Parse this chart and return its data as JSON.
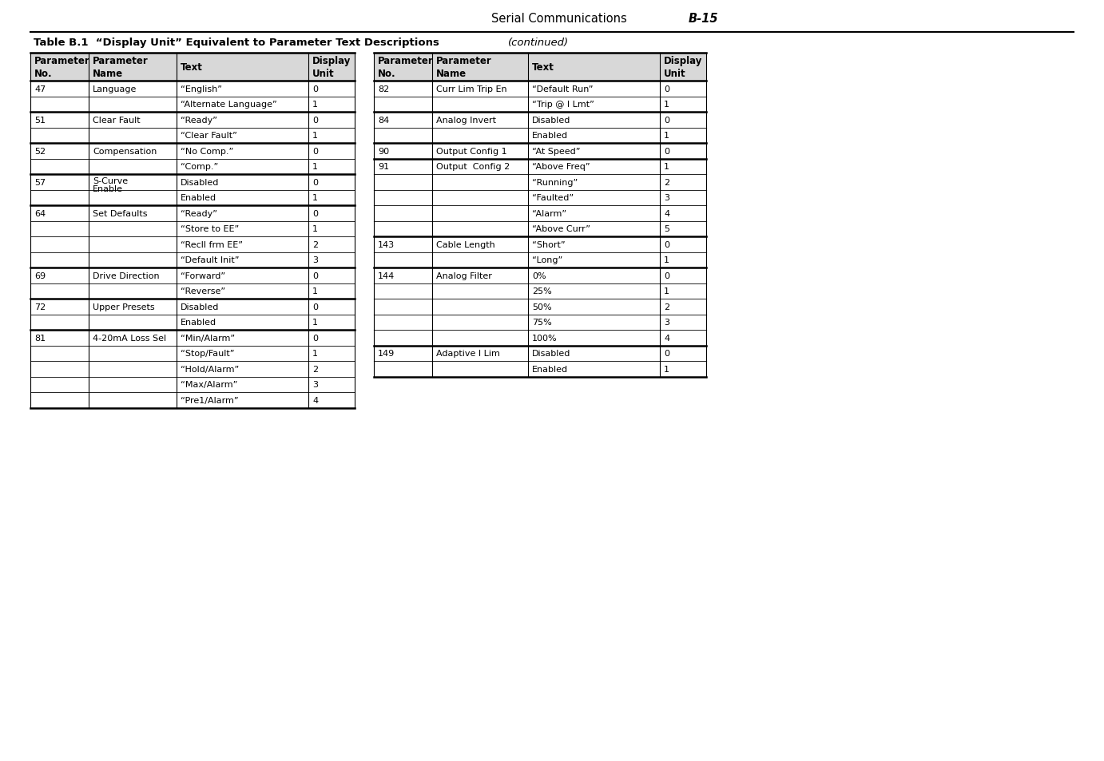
{
  "page_header_left": "Serial Communications",
  "page_header_right": "B-15",
  "table_title_bold": "Table B.1  “Display Unit” Equivalent to Parameter Text Descriptions",
  "table_title_italic": "(continued)",
  "left_table": {
    "headers": [
      "Parameter\nNo.",
      "Parameter\nName",
      "Text",
      "Display\nUnit"
    ],
    "rows": [
      [
        "47",
        "Language",
        "“English”",
        "0"
      ],
      [
        "",
        "",
        "“Alternate Language”",
        "1"
      ],
      [
        "51",
        "Clear Fault",
        "“Ready”",
        "0"
      ],
      [
        "",
        "",
        "“Clear Fault”",
        "1"
      ],
      [
        "52",
        "Compensation",
        "“No Comp.”",
        "0"
      ],
      [
        "",
        "",
        "“Comp.”",
        "1"
      ],
      [
        "57",
        "S-Curve\nEnable",
        "Disabled",
        "0"
      ],
      [
        "",
        "",
        "Enabled",
        "1"
      ],
      [
        "64",
        "Set Defaults",
        "“Ready”",
        "0"
      ],
      [
        "",
        "",
        "“Store to EE”",
        "1"
      ],
      [
        "",
        "",
        "“Recll frm EE”",
        "2"
      ],
      [
        "",
        "",
        "“Default Init”",
        "3"
      ],
      [
        "69",
        "Drive Direction",
        "“Forward”",
        "0"
      ],
      [
        "",
        "",
        "“Reverse”",
        "1"
      ],
      [
        "72",
        "Upper Presets",
        "Disabled",
        "0"
      ],
      [
        "",
        "",
        "Enabled",
        "1"
      ],
      [
        "81",
        "4-20mA Loss Sel",
        "“Min/Alarm”",
        "0"
      ],
      [
        "",
        "",
        "“Stop/Fault”",
        "1"
      ],
      [
        "",
        "",
        "“Hold/Alarm”",
        "2"
      ],
      [
        "",
        "",
        "“Max/Alarm”",
        "3"
      ],
      [
        "",
        "",
        "“Pre1/Alarm”",
        "4"
      ]
    ]
  },
  "right_table": {
    "headers": [
      "Parameter\nNo.",
      "Parameter\nName",
      "Text",
      "Display\nUnit"
    ],
    "rows": [
      [
        "82",
        "Curr Lim Trip En",
        "“Default Run”",
        "0"
      ],
      [
        "",
        "",
        "“Trip @ I Lmt”",
        "1"
      ],
      [
        "84",
        "Analog Invert",
        "Disabled",
        "0"
      ],
      [
        "",
        "",
        "Enabled",
        "1"
      ],
      [
        "90",
        "Output Config 1",
        "“At Speed”",
        "0"
      ],
      [
        "91",
        "Output  Config 2",
        "“Above Freq”",
        "1"
      ],
      [
        "",
        "",
        "“Running”",
        "2"
      ],
      [
        "",
        "",
        "“Faulted”",
        "3"
      ],
      [
        "",
        "",
        "“Alarm”",
        "4"
      ],
      [
        "",
        "",
        "“Above Curr”",
        "5"
      ],
      [
        "143",
        "Cable Length",
        "“Short”",
        "0"
      ],
      [
        "",
        "",
        "“Long”",
        "1"
      ],
      [
        "144",
        "Analog Filter",
        "0%",
        "0"
      ],
      [
        "",
        "",
        "25%",
        "1"
      ],
      [
        "",
        "",
        "50%",
        "2"
      ],
      [
        "",
        "",
        "75%",
        "3"
      ],
      [
        "",
        "",
        "100%",
        "4"
      ],
      [
        "149",
        "Adaptive I Lim",
        "Disabled",
        "0"
      ],
      [
        "",
        "",
        "Enabled",
        "1"
      ]
    ]
  },
  "header_bg": "#d8d8d8",
  "font_size": 8.0,
  "header_font_size": 8.5
}
